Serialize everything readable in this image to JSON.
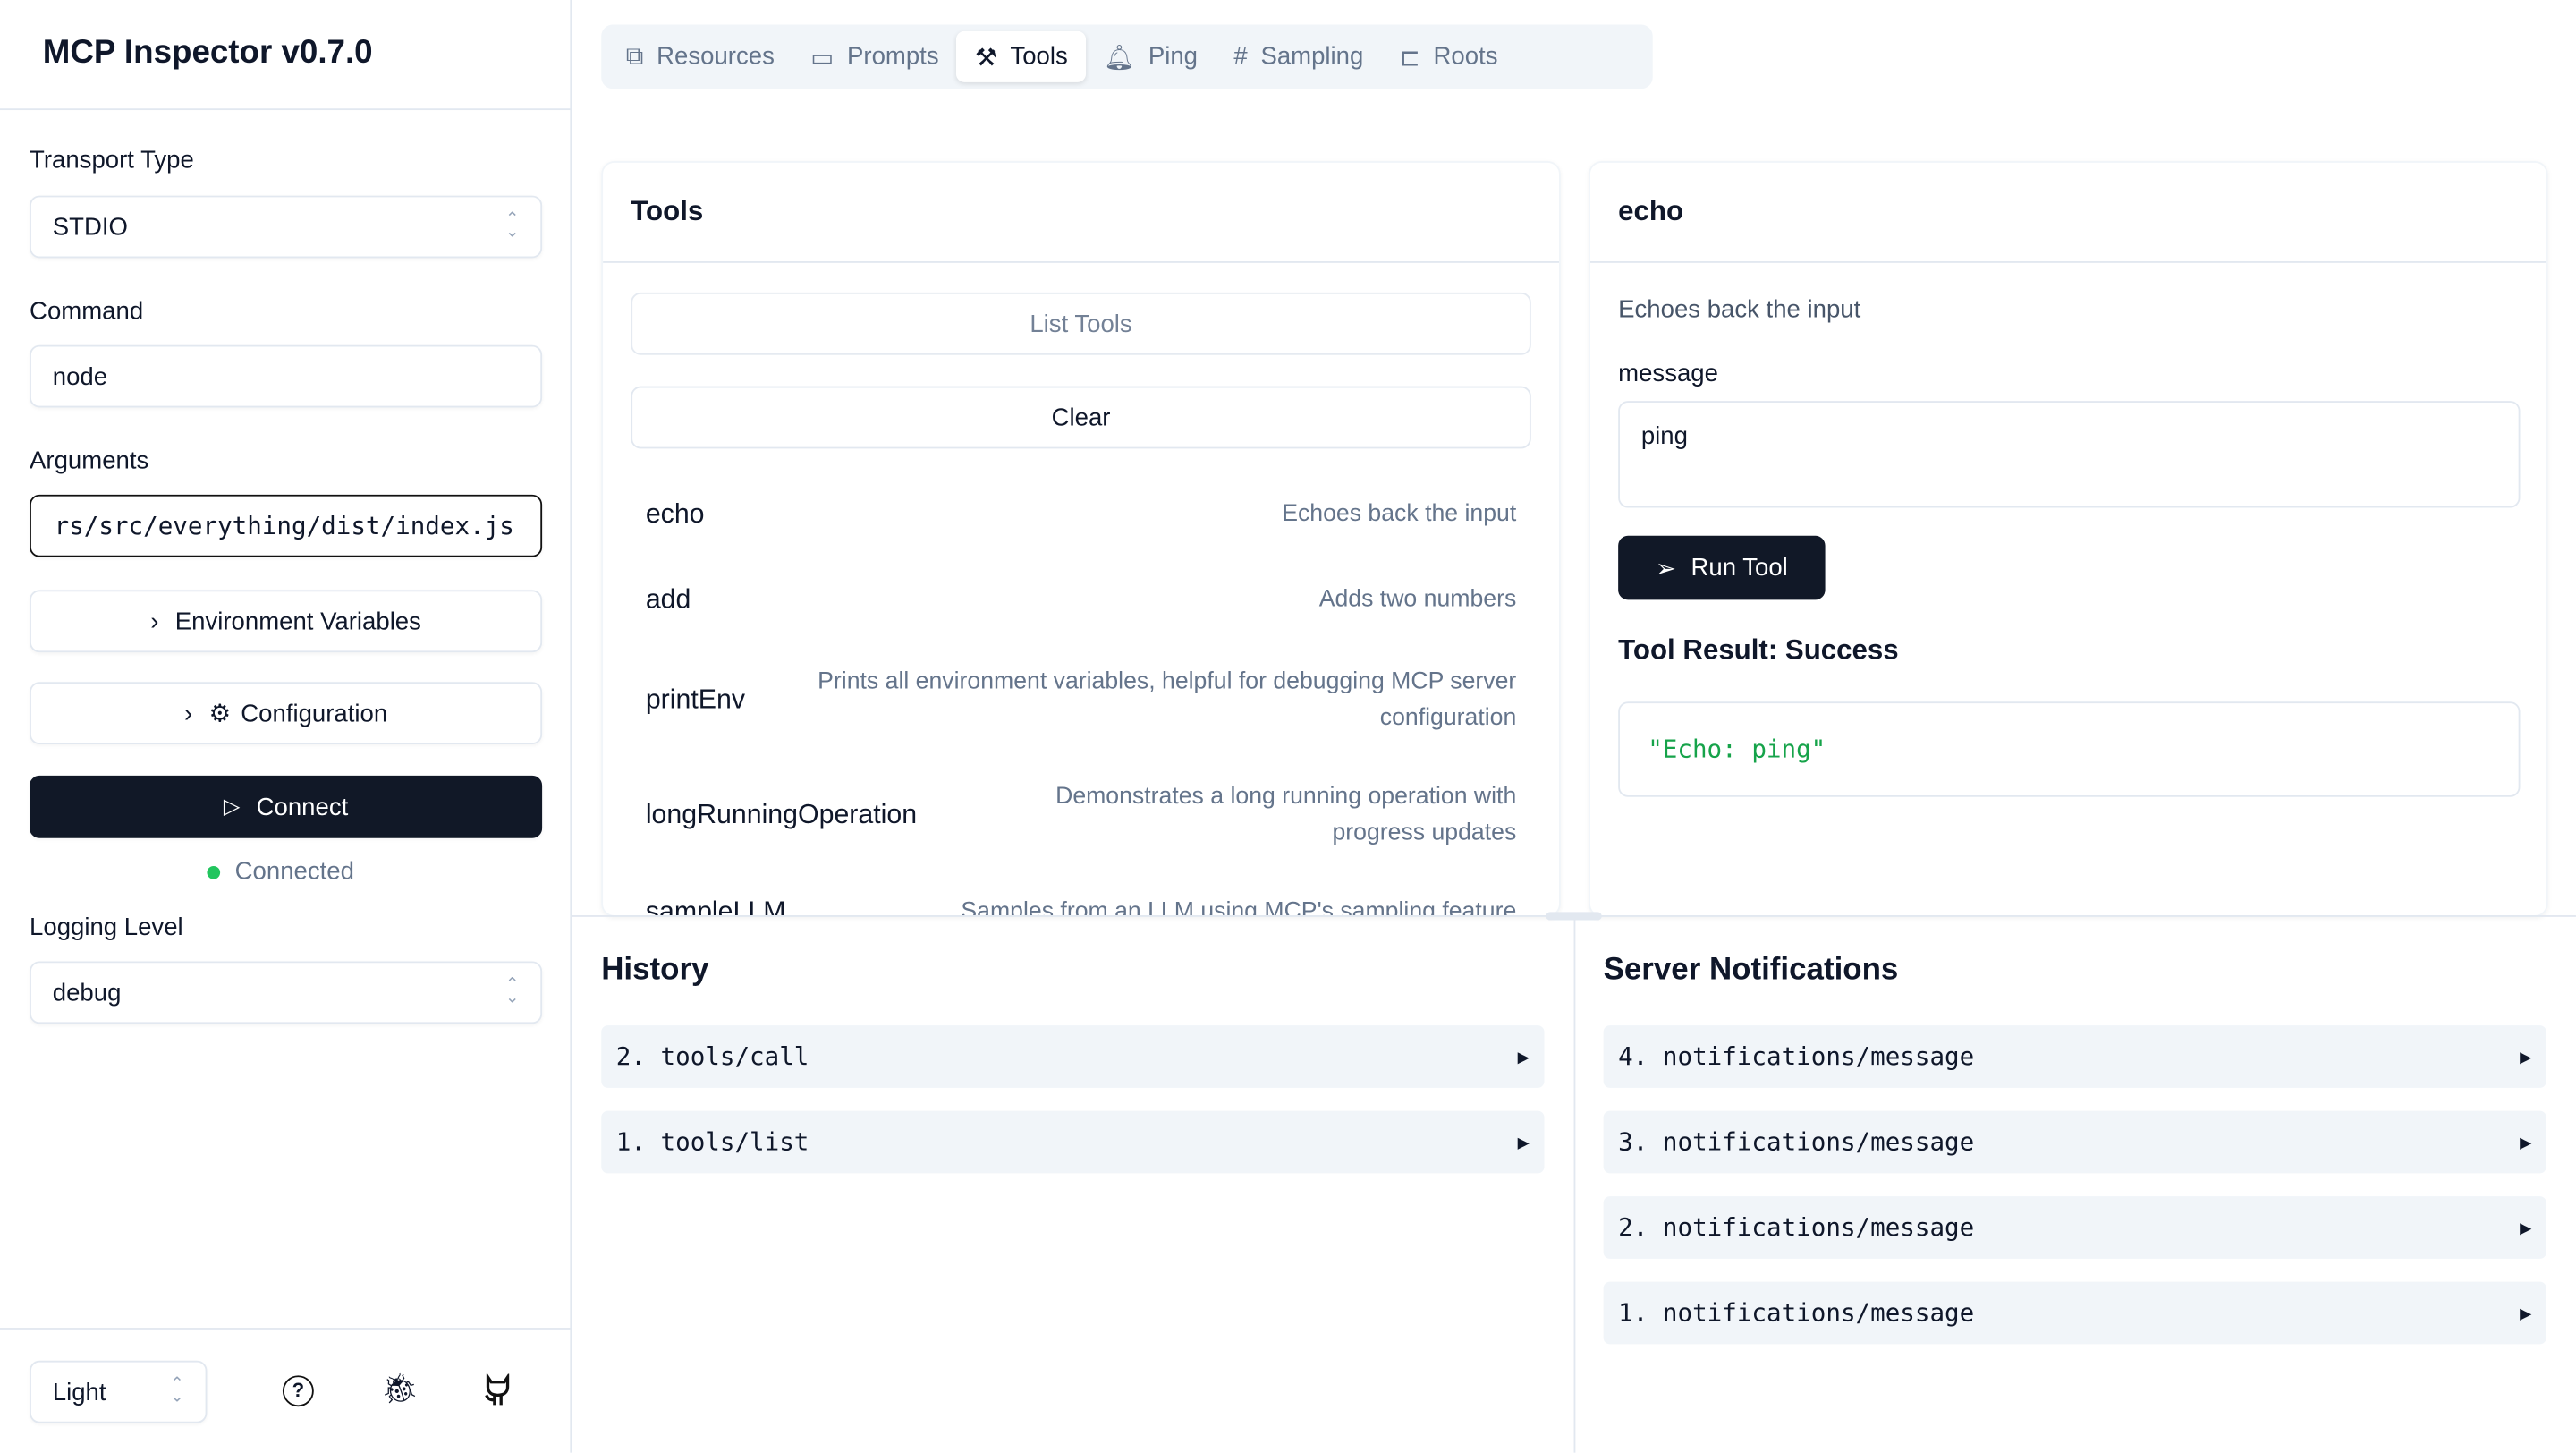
{
  "app": {
    "title": "MCP Inspector v0.7.0"
  },
  "sidebar": {
    "transport_label": "Transport Type",
    "transport_value": "STDIO",
    "command_label": "Command",
    "command_value": "node",
    "arguments_label": "Arguments",
    "arguments_value": "rs/src/everything/dist/index.js",
    "env_button": "Environment Variables",
    "config_button": "Configuration",
    "connect_button": "Connect",
    "status": "Connected",
    "status_color": "#22c55e",
    "logging_label": "Logging Level",
    "logging_value": "debug",
    "theme_value": "Light",
    "footer_icons": [
      "help-circle-icon",
      "bug-icon",
      "github-icon"
    ]
  },
  "tabs": [
    {
      "label": "Resources",
      "icon": "files-icon"
    },
    {
      "label": "Prompts",
      "icon": "message-square-icon"
    },
    {
      "label": "Tools",
      "icon": "hammer-icon",
      "active": true
    },
    {
      "label": "Ping",
      "icon": "bell-icon"
    },
    {
      "label": "Sampling",
      "icon": "hash-icon"
    },
    {
      "label": "Roots",
      "icon": "folder-tree-icon"
    }
  ],
  "tools_panel": {
    "title": "Tools",
    "list_button": "List Tools",
    "clear_button": "Clear",
    "tools": [
      {
        "name": "echo",
        "desc": "Echoes back the input"
      },
      {
        "name": "add",
        "desc": "Adds two numbers"
      },
      {
        "name": "printEnv",
        "desc": "Prints all environment variables, helpful for debugging MCP server configuration"
      },
      {
        "name": "longRunningOperation",
        "desc": "Demonstrates a long running operation with progress updates"
      },
      {
        "name": "sampleLLM",
        "desc": "Samples from an LLM using MCP's sampling feature"
      }
    ]
  },
  "tool_detail": {
    "title": "echo",
    "description": "Echoes back the input",
    "param_label": "message",
    "param_value": "ping",
    "run_button": "Run Tool",
    "result_title": "Tool Result: Success",
    "result_value": "\"Echo: ping\"",
    "result_color": "#16a34a"
  },
  "history": {
    "title": "History",
    "items": [
      "2. tools/call",
      "1. tools/list"
    ]
  },
  "notifications": {
    "title": "Server Notifications",
    "items": [
      "4. notifications/message",
      "3. notifications/message",
      "2. notifications/message",
      "1. notifications/message"
    ]
  }
}
